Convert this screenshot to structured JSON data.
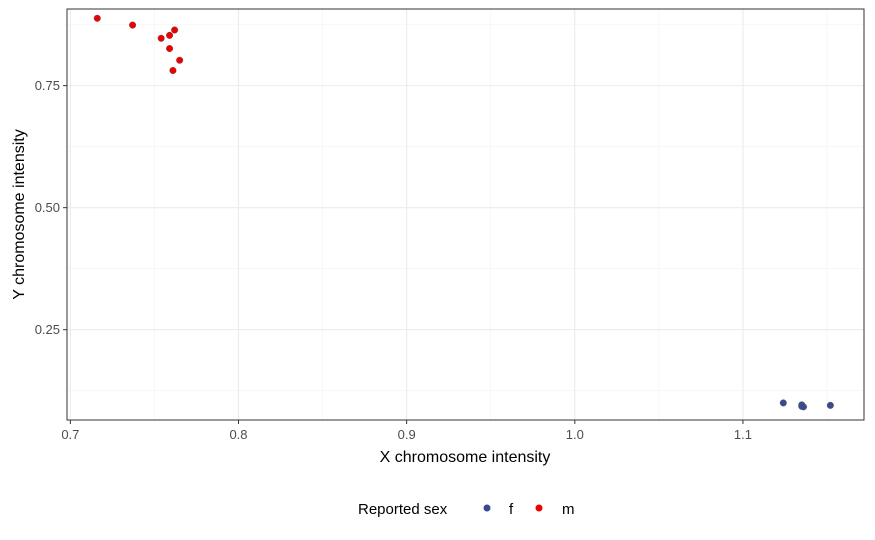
{
  "chart_data": {
    "type": "scatter",
    "xlabel": "X chromosome intensity",
    "ylabel": "Y chromosome intensity",
    "xlim": [
      0.698,
      1.172
    ],
    "ylim": [
      0.065,
      0.907
    ],
    "x_ticks": [
      0.7,
      0.8,
      0.9,
      1.0,
      1.1
    ],
    "x_tick_labels": [
      "0.7",
      "0.8",
      "0.9",
      "1.0",
      "1.1"
    ],
    "y_ticks": [
      0.25,
      0.5,
      0.75
    ],
    "y_tick_labels": [
      "0.25",
      "0.50",
      "0.75"
    ],
    "grid": true,
    "legend": {
      "title": "Reported sex",
      "placement": "bottom",
      "entries": [
        {
          "label": "f",
          "color": "#3b4992"
        },
        {
          "label": "m",
          "color": "#ee0000"
        }
      ]
    },
    "series": [
      {
        "name": "f",
        "color": "#3b4992",
        "points": [
          {
            "x": 1.124,
            "y": 0.1
          },
          {
            "x": 1.135,
            "y": 0.096
          },
          {
            "x": 1.136,
            "y": 0.092
          },
          {
            "x": 1.135,
            "y": 0.093
          },
          {
            "x": 1.152,
            "y": 0.095
          }
        ]
      },
      {
        "name": "m",
        "color": "#ee0000",
        "points": [
          {
            "x": 0.716,
            "y": 0.888
          },
          {
            "x": 0.737,
            "y": 0.874
          },
          {
            "x": 0.754,
            "y": 0.847
          },
          {
            "x": 0.759,
            "y": 0.853
          },
          {
            "x": 0.762,
            "y": 0.864
          },
          {
            "x": 0.759,
            "y": 0.826
          },
          {
            "x": 0.765,
            "y": 0.802
          },
          {
            "x": 0.761,
            "y": 0.781
          }
        ]
      }
    ]
  }
}
